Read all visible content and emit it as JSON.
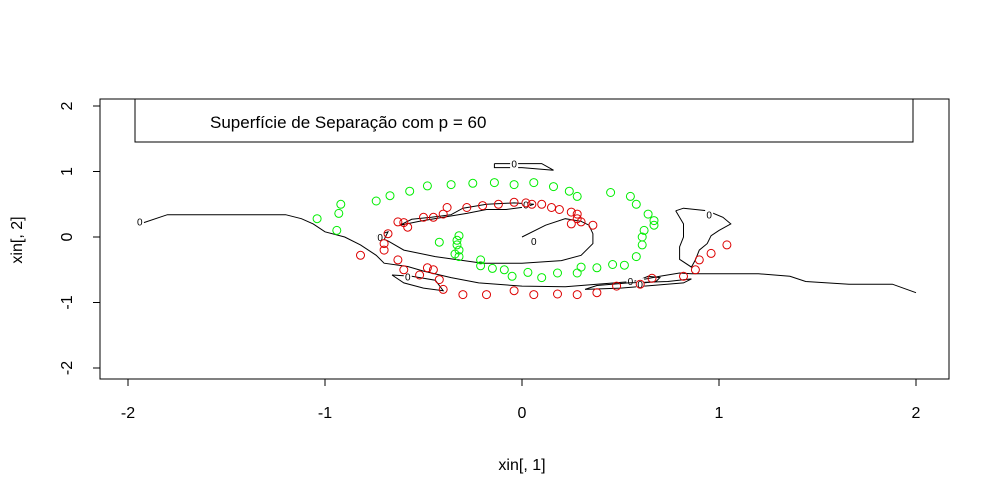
{
  "chart_data": {
    "type": "scatter",
    "xlabel": "xin[, 1]",
    "ylabel": "xin[, 2]",
    "xlim": [
      -2.1,
      2.15
    ],
    "ylim": [
      -2.15,
      2.15
    ],
    "x_ticks": [
      "-2",
      "-1",
      "0",
      "1",
      "2"
    ],
    "y_ticks": [
      "-2",
      "-1",
      "0",
      "1",
      "2"
    ],
    "grid": false,
    "legend": {
      "text": "Superfície de Separação com p = 60",
      "placement": "top"
    },
    "contour_level": "0",
    "colors": {
      "class_a": "#00ee00",
      "class_b": "#dd0000",
      "contour": "#000000"
    },
    "series": [
      {
        "color": "#00ee00",
        "points": [
          [
            -1.04,
            0.28
          ],
          [
            -0.92,
            0.5
          ],
          [
            -0.93,
            0.36
          ],
          [
            -0.94,
            0.1
          ],
          [
            -0.74,
            0.55
          ],
          [
            -0.67,
            0.63
          ],
          [
            -0.57,
            0.7
          ],
          [
            -0.48,
            0.78
          ],
          [
            -0.36,
            0.8
          ],
          [
            -0.25,
            0.82
          ],
          [
            -0.14,
            0.83
          ],
          [
            -0.04,
            0.8
          ],
          [
            0.06,
            0.83
          ],
          [
            0.16,
            0.77
          ],
          [
            0.24,
            0.7
          ],
          [
            0.28,
            0.62
          ],
          [
            0.45,
            0.68
          ],
          [
            0.55,
            0.62
          ],
          [
            0.58,
            0.5
          ],
          [
            0.64,
            0.35
          ],
          [
            0.67,
            0.25
          ],
          [
            0.67,
            0.18
          ],
          [
            0.62,
            0.1
          ],
          [
            0.61,
            0.0
          ],
          [
            0.61,
            -0.12
          ],
          [
            0.58,
            -0.3
          ],
          [
            0.52,
            -0.43
          ],
          [
            0.46,
            -0.42
          ],
          [
            0.38,
            -0.47
          ],
          [
            0.3,
            -0.46
          ],
          [
            0.28,
            -0.55
          ],
          [
            0.18,
            -0.55
          ],
          [
            0.1,
            -0.62
          ],
          [
            0.03,
            -0.54
          ],
          [
            -0.05,
            -0.6
          ],
          [
            -0.09,
            -0.5
          ],
          [
            -0.15,
            -0.48
          ],
          [
            -0.21,
            -0.44
          ],
          [
            -0.21,
            -0.35
          ],
          [
            -0.32,
            -0.3
          ],
          [
            -0.32,
            -0.2
          ],
          [
            -0.33,
            -0.12
          ],
          [
            -0.33,
            -0.05
          ],
          [
            -0.32,
            0.02
          ],
          [
            -0.42,
            -0.08
          ],
          [
            -0.34,
            -0.26
          ]
        ]
      },
      {
        "color": "#dd0000",
        "points": [
          [
            -0.82,
            -0.28
          ],
          [
            -0.7,
            -0.1
          ],
          [
            -0.7,
            -0.2
          ],
          [
            -0.68,
            0.05
          ],
          [
            -0.63,
            0.23
          ],
          [
            -0.6,
            0.22
          ],
          [
            -0.58,
            0.15
          ],
          [
            -0.5,
            0.3
          ],
          [
            -0.45,
            0.3
          ],
          [
            -0.4,
            0.35
          ],
          [
            -0.38,
            0.45
          ],
          [
            -0.28,
            0.45
          ],
          [
            -0.2,
            0.48
          ],
          [
            -0.12,
            0.5
          ],
          [
            -0.04,
            0.53
          ],
          [
            0.02,
            0.52
          ],
          [
            0.1,
            0.5
          ],
          [
            0.15,
            0.45
          ],
          [
            0.19,
            0.42
          ],
          [
            0.25,
            0.38
          ],
          [
            0.28,
            0.35
          ],
          [
            0.28,
            0.28
          ],
          [
            0.3,
            0.23
          ],
          [
            0.36,
            0.18
          ],
          [
            0.25,
            0.2
          ],
          [
            0.05,
            0.5
          ],
          [
            -0.63,
            -0.35
          ],
          [
            -0.6,
            -0.5
          ],
          [
            -0.52,
            -0.58
          ],
          [
            -0.48,
            -0.47
          ],
          [
            -0.45,
            -0.5
          ],
          [
            -0.42,
            -0.65
          ],
          [
            -0.4,
            -0.8
          ],
          [
            -0.3,
            -0.88
          ],
          [
            -0.18,
            -0.88
          ],
          [
            -0.04,
            -0.82
          ],
          [
            0.06,
            -0.88
          ],
          [
            0.18,
            -0.87
          ],
          [
            0.28,
            -0.88
          ],
          [
            0.38,
            -0.85
          ],
          [
            0.48,
            -0.75
          ],
          [
            0.6,
            -0.72
          ],
          [
            0.66,
            -0.63
          ],
          [
            0.82,
            -0.6
          ],
          [
            0.88,
            -0.5
          ],
          [
            0.9,
            -0.35
          ],
          [
            0.96,
            -0.25
          ],
          [
            1.04,
            -0.12
          ]
        ]
      }
    ],
    "contour_lines": [
      {
        "points": [
          [
            -1.92,
            0.22
          ],
          [
            -1.8,
            0.34
          ],
          [
            -1.2,
            0.34
          ],
          [
            -1.12,
            0.28
          ],
          [
            -1.06,
            0.2
          ],
          [
            -1.0,
            0.08
          ],
          [
            -0.9,
            0.0
          ],
          [
            -0.82,
            -0.12
          ],
          [
            -0.74,
            -0.28
          ],
          [
            -0.7,
            -0.4
          ],
          [
            -0.58,
            -0.45
          ],
          [
            -0.5,
            -0.52
          ],
          [
            -0.36,
            -0.62
          ],
          [
            -0.22,
            -0.7
          ],
          [
            0.0,
            -0.75
          ],
          [
            0.22,
            -0.76
          ],
          [
            0.38,
            -0.72
          ],
          [
            0.56,
            -0.68
          ],
          [
            0.7,
            -0.6
          ],
          [
            0.8,
            -0.55
          ],
          [
            0.86,
            -0.56
          ],
          [
            1.2,
            -0.56
          ],
          [
            1.36,
            -0.6
          ],
          [
            1.44,
            -0.68
          ],
          [
            1.66,
            -0.72
          ],
          [
            1.88,
            -0.72
          ],
          [
            2.0,
            -0.85
          ]
        ],
        "label": [
          -1.94,
          0.24
        ]
      },
      {
        "points": [
          [
            -0.73,
            0.0
          ],
          [
            -0.68,
            -0.06
          ],
          [
            -0.6,
            -0.2
          ],
          [
            -0.44,
            -0.3
          ],
          [
            -0.2,
            -0.4
          ],
          [
            0.0,
            -0.4
          ],
          [
            0.2,
            -0.36
          ],
          [
            0.3,
            -0.28
          ],
          [
            0.36,
            -0.1
          ],
          [
            0.36,
            0.05
          ],
          [
            0.34,
            0.18
          ],
          [
            0.3,
            0.24
          ],
          [
            0.22,
            0.28
          ],
          [
            0.12,
            0.18
          ],
          [
            0.0,
            0.0
          ]
        ],
        "label": [
          0.06,
          -0.06
        ]
      },
      {
        "points": [
          [
            -0.62,
            0.18
          ],
          [
            -0.56,
            0.27
          ],
          [
            -0.46,
            0.3
          ],
          [
            -0.36,
            0.34
          ],
          [
            -0.3,
            0.44
          ],
          [
            -0.18,
            0.5
          ],
          [
            -0.04,
            0.52
          ],
          [
            0.06,
            0.5
          ],
          [
            0.02,
            0.46
          ],
          [
            -0.08,
            0.42
          ],
          [
            -0.18,
            0.42
          ],
          [
            -0.28,
            0.36
          ],
          [
            -0.4,
            0.3
          ],
          [
            -0.52,
            0.24
          ],
          [
            -0.62,
            0.18
          ]
        ],
        "label": [
          0.02,
          0.5
        ]
      },
      {
        "points": [
          [
            -0.14,
            1.12
          ],
          [
            0.1,
            1.12
          ],
          [
            0.16,
            1.02
          ],
          [
            0.0,
            1.06
          ],
          [
            -0.14,
            1.06
          ],
          [
            -0.14,
            1.12
          ]
        ],
        "label": [
          -0.04,
          1.12
        ]
      },
      {
        "points": [
          [
            -0.74,
            0.02
          ],
          [
            -0.68,
            0.08
          ],
          [
            -0.7,
            -0.04
          ],
          [
            -0.74,
            0.02
          ]
        ],
        "label": [
          -0.72,
          0.0
        ]
      },
      {
        "points": [
          [
            -0.66,
            -0.58
          ],
          [
            -0.56,
            -0.6
          ],
          [
            -0.44,
            -0.66
          ],
          [
            -0.4,
            -0.82
          ],
          [
            -0.5,
            -0.78
          ],
          [
            -0.6,
            -0.7
          ],
          [
            -0.66,
            -0.58
          ]
        ],
        "label": [
          -0.58,
          -0.6
        ]
      },
      {
        "points": [
          [
            0.78,
            0.4
          ],
          [
            0.82,
            0.44
          ],
          [
            0.94,
            0.4
          ],
          [
            1.02,
            0.3
          ],
          [
            1.06,
            0.2
          ],
          [
            1.0,
            0.1
          ],
          [
            0.96,
            0.02
          ],
          [
            0.94,
            -0.1
          ],
          [
            0.9,
            -0.2
          ],
          [
            0.88,
            -0.35
          ],
          [
            0.86,
            -0.46
          ],
          [
            0.8,
            -0.34
          ],
          [
            0.8,
            -0.15
          ],
          [
            0.82,
            0.0
          ],
          [
            0.82,
            0.2
          ],
          [
            0.78,
            0.4
          ]
        ],
        "label": [
          0.95,
          0.34
        ]
      },
      {
        "points": [
          [
            0.6,
            -0.65
          ],
          [
            0.62,
            -0.7
          ],
          [
            0.68,
            -0.68
          ],
          [
            0.7,
            -0.62
          ],
          [
            0.64,
            -0.6
          ],
          [
            0.6,
            -0.65
          ]
        ],
        "label": [
          0.55,
          -0.67
        ]
      },
      {
        "points": [
          [
            0.32,
            -0.8
          ],
          [
            0.5,
            -0.78
          ],
          [
            0.66,
            -0.74
          ],
          [
            0.82,
            -0.7
          ],
          [
            0.86,
            -0.64
          ],
          [
            0.74,
            -0.68
          ],
          [
            0.54,
            -0.7
          ],
          [
            0.38,
            -0.74
          ],
          [
            0.32,
            -0.8
          ]
        ],
        "label": [
          0.6,
          -0.72
        ]
      }
    ]
  }
}
